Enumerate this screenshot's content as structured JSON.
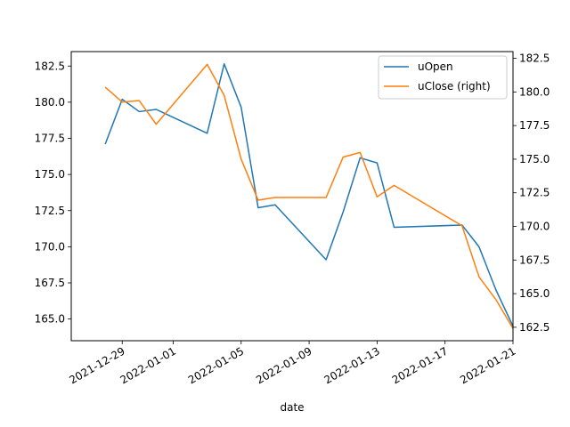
{
  "chart_data": {
    "type": "line",
    "xlabel": "date",
    "x": [
      "2021-12-28",
      "2021-12-29",
      "2021-12-30",
      "2021-12-31",
      "2022-01-03",
      "2022-01-04",
      "2022-01-05",
      "2022-01-06",
      "2022-01-07",
      "2022-01-10",
      "2022-01-11",
      "2022-01-12",
      "2022-01-13",
      "2022-01-14",
      "2022-01-18",
      "2022-01-19",
      "2022-01-20",
      "2022-01-21"
    ],
    "x_ticks": [
      "2021-12-29",
      "2022-01-01",
      "2022-01-05",
      "2022-01-09",
      "2022-01-13",
      "2022-01-17",
      "2022-01-21"
    ],
    "xlim": [
      "2021-12-26",
      "2022-01-21"
    ],
    "left_axis": {
      "ylim": [
        163.5,
        183.5
      ],
      "ticks": [
        "165.0",
        "167.5",
        "170.0",
        "172.5",
        "175.0",
        "177.5",
        "180.0",
        "182.5"
      ]
    },
    "right_axis": {
      "ylim": [
        161.5,
        183.0
      ],
      "ticks": [
        "162.5",
        "165.0",
        "167.5",
        "170.0",
        "172.5",
        "175.0",
        "177.5",
        "180.0",
        "182.5"
      ]
    },
    "series": [
      {
        "name": "uOpen",
        "axis": "left",
        "color": "#1f77b4",
        "values": [
          177.1,
          180.2,
          179.35,
          179.5,
          177.85,
          182.65,
          179.65,
          172.7,
          172.9,
          169.1,
          172.4,
          176.15,
          175.8,
          171.35,
          171.5,
          170.0,
          167.0,
          164.5
        ]
      },
      {
        "name": "uClose (right)",
        "axis": "right",
        "color": "#ff7f0e",
        "values": [
          180.35,
          179.25,
          179.35,
          177.6,
          182.05,
          179.75,
          175.0,
          171.95,
          172.15,
          172.15,
          175.15,
          175.5,
          172.2,
          173.05,
          170.05,
          166.25,
          164.55,
          162.4
        ]
      }
    ],
    "legend": {
      "position": "upper-right"
    },
    "grid": false
  }
}
